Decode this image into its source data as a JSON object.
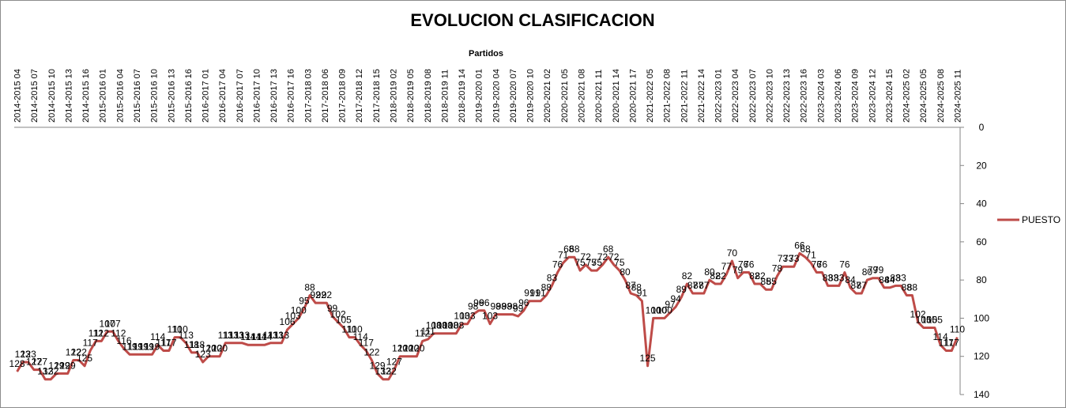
{
  "chart_data": {
    "type": "line",
    "title": "EVOLUCION CLASIFICACION",
    "xlabel": "Partidos",
    "ylabel": "",
    "ylim": [
      0,
      140
    ],
    "y_reversed": true,
    "y_ticks": [
      0,
      20,
      40,
      60,
      80,
      100,
      120,
      140
    ],
    "grid": "none",
    "x_axis_position": "top",
    "y_axis_position": "right",
    "legend_position": "right",
    "line_color": "#be4b48",
    "x_tick_labels": [
      "2014-2015 04",
      "2014-2015 07",
      "2014-2015 10",
      "2014-2015 13",
      "2014-2015 16",
      "2015-2016 01",
      "2015-2016 04",
      "2015-2016 07",
      "2015-2016 10",
      "2015-2016 13",
      "2015-2016 16",
      "2016-2017 01",
      "2016-2017 04",
      "2016-2017 07",
      "2016-2017 10",
      "2016-2017 13",
      "2016-2017 16",
      "2017-2018 03",
      "2017-2018 06",
      "2017-2018 09",
      "2017-2018 12",
      "2017-2018 15",
      "2018-2019 02",
      "2018-2019 05",
      "2018-2019 08",
      "2018-2019 11",
      "2018-2019 14",
      "2019-2020 01",
      "2019-2020 04",
      "2019-2020 07",
      "2019-2020 10",
      "2020-2021 02",
      "2020-2021 05",
      "2020-2021 08",
      "2020-2021 11",
      "2020-2021 14",
      "2020-2021 17",
      "2021-2022 05",
      "2021-2022 08",
      "2021-2022 11",
      "2021-2022 14",
      "2022-2023 01",
      "2022-2023 04",
      "2022-2023 07",
      "2022-2023 10",
      "2022-2023 13",
      "2022-2023 16",
      "2023-2024 03",
      "2023-2024 06",
      "2023-2024 09",
      "2023-2024 12",
      "2023-2024 15",
      "2024-2025 02",
      "2024-2025 05",
      "2024-2025 08",
      "2024-2025 11"
    ],
    "series": [
      {
        "name": "PUESTO",
        "values": [
          128,
          123,
          123,
          127,
          127,
          132,
          132,
          129,
          129,
          129,
          122,
          122,
          125,
          117,
          112,
          112,
          107,
          107,
          112,
          116,
          119,
          119,
          119,
          119,
          119,
          114,
          117,
          117,
          110,
          110,
          113,
          118,
          118,
          123,
          120,
          120,
          120,
          113,
          113,
          113,
          113,
          114,
          114,
          114,
          114,
          113,
          113,
          113,
          106,
          103,
          100,
          95,
          88,
          92,
          92,
          92,
          99,
          102,
          105,
          110,
          110,
          114,
          117,
          122,
          129,
          132,
          132,
          127,
          120,
          120,
          120,
          120,
          112,
          111,
          108,
          108,
          108,
          108,
          108,
          103,
          103,
          98,
          96,
          96,
          103,
          98,
          98,
          98,
          98,
          99,
          96,
          91,
          91,
          91,
          88,
          83,
          76,
          71,
          68,
          68,
          75,
          72,
          75,
          75,
          72,
          68,
          72,
          75,
          80,
          87,
          88,
          91,
          125,
          100,
          100,
          100,
          97,
          94,
          89,
          82,
          87,
          87,
          87,
          80,
          82,
          82,
          77,
          70,
          79,
          76,
          76,
          82,
          82,
          85,
          85,
          78,
          73,
          73,
          73,
          66,
          68,
          71,
          76,
          76,
          83,
          83,
          83,
          76,
          84,
          87,
          87,
          80,
          79,
          79,
          84,
          84,
          83,
          83,
          88,
          88,
          102,
          105,
          105,
          105,
          114,
          117,
          117,
          110
        ]
      }
    ]
  }
}
